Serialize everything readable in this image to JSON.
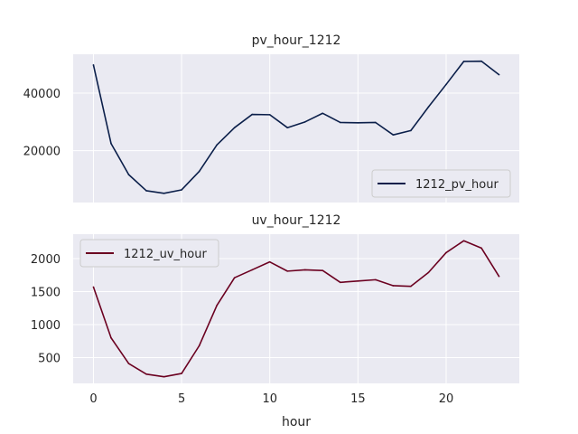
{
  "chart_data": [
    {
      "type": "line",
      "title": "pv_hour_1212",
      "xlabel": "",
      "ylabel": "",
      "x": [
        0,
        1,
        2,
        3,
        4,
        5,
        6,
        7,
        8,
        9,
        10,
        11,
        12,
        13,
        14,
        15,
        16,
        17,
        18,
        19,
        20,
        21,
        22,
        23
      ],
      "series": [
        {
          "name": "1212_pv_hour",
          "color": "#0b1f4a",
          "values": [
            49800,
            22500,
            11700,
            6100,
            5200,
            6400,
            12800,
            22000,
            28000,
            32600,
            32500,
            28000,
            30000,
            33000,
            29800,
            29700,
            29800,
            25500,
            27000,
            35200,
            43000,
            51000,
            51100,
            46400
          ]
        }
      ],
      "xlim": [
        -1.15,
        24.15
      ],
      "ylim": [
        2000,
        53500
      ],
      "yticks": [
        20000,
        40000
      ],
      "ytick_labels": [
        "20000",
        "40000"
      ],
      "grid": true,
      "legend_position": "lower right"
    },
    {
      "type": "line",
      "title": "uv_hour_1212",
      "xlabel": "hour",
      "ylabel": "",
      "x": [
        0,
        1,
        2,
        3,
        4,
        5,
        6,
        7,
        8,
        9,
        10,
        11,
        12,
        13,
        14,
        15,
        16,
        17,
        18,
        19,
        20,
        21,
        22,
        23
      ],
      "series": [
        {
          "name": "1212_uv_hour",
          "color": "#6b0020",
          "values": [
            1570,
            800,
            410,
            250,
            210,
            260,
            680,
            1290,
            1710,
            1830,
            1950,
            1810,
            1830,
            1820,
            1640,
            1660,
            1680,
            1590,
            1580,
            1790,
            2090,
            2270,
            2160,
            1730
          ]
        }
      ],
      "xlim": [
        -1.15,
        24.15
      ],
      "ylim": [
        110,
        2370
      ],
      "xticks": [
        0,
        5,
        10,
        15,
        20
      ],
      "xtick_labels": [
        "0",
        "5",
        "10",
        "15",
        "20"
      ],
      "yticks": [
        500,
        1000,
        1500,
        2000
      ],
      "ytick_labels": [
        "500",
        "1000",
        "1500",
        "2000"
      ],
      "grid": true,
      "legend_position": "upper left"
    }
  ]
}
